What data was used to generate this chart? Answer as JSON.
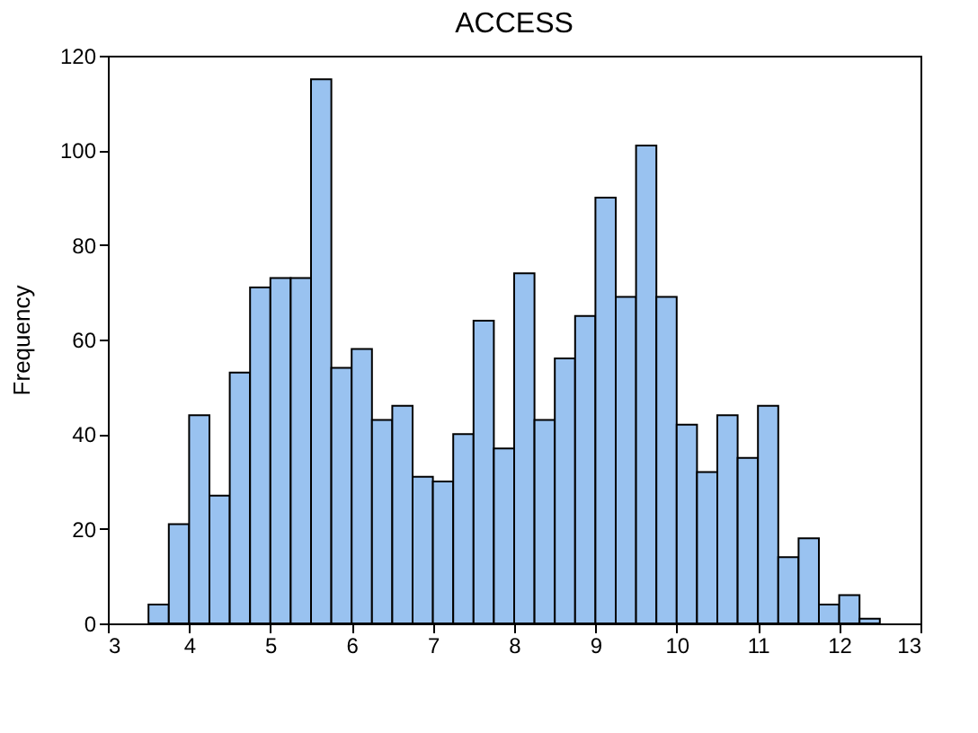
{
  "chart_data": {
    "type": "histogram",
    "title": "ACCESS",
    "ylabel": "Frequency",
    "bins": [
      3.5,
      3.75,
      4,
      4.25,
      4.5,
      4.75,
      5,
      5.25,
      5.5,
      5.75,
      6,
      6.25,
      6.5,
      6.75,
      7,
      7.25,
      7.5,
      7.75,
      8,
      8.25,
      8.5,
      8.75,
      9,
      9.25,
      9.5,
      9.75,
      10,
      10.25,
      10.5,
      10.75,
      11,
      11.25,
      11.5,
      11.75,
      12,
      12.25,
      12.5
    ],
    "values": [
      4,
      21,
      44,
      27,
      53,
      71,
      73,
      73,
      115,
      54,
      58,
      43,
      46,
      31,
      30,
      40,
      64,
      37,
      74,
      43,
      56,
      65,
      90,
      69,
      101,
      69,
      42,
      32,
      44,
      35,
      46,
      14,
      18,
      4,
      6,
      1
    ],
    "color": "#99c2f0",
    "xlim": [
      3,
      13
    ],
    "xticks": [
      3,
      4,
      5,
      6,
      7,
      8,
      9,
      10,
      11,
      12,
      13
    ],
    "ylim": [
      0,
      120
    ],
    "yticks": [
      0,
      20,
      40,
      60,
      80,
      100,
      120
    ],
    "grid": false
  }
}
